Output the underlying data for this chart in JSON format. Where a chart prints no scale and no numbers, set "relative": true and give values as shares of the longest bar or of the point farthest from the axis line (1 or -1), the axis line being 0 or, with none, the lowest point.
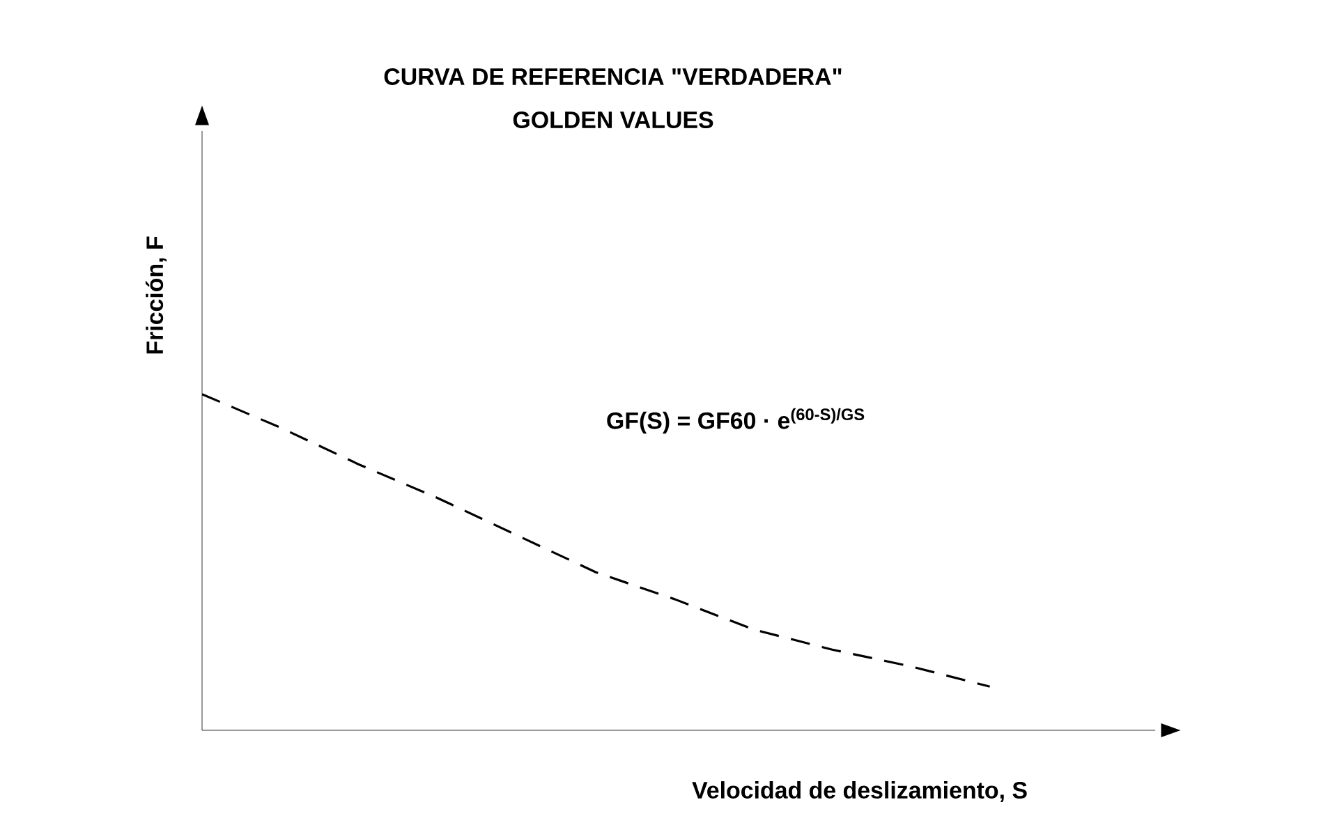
{
  "chart_data": {
    "type": "line",
    "title": "CURVA DE REFERENCIA \"VERDADERA\"",
    "subtitle": "GOLDEN VALUES",
    "xlabel": "Velocidad de deslizamiento, S",
    "ylabel": "Fricción, F",
    "annotations": [
      "GF(S) = GF60 · e$^{(60-S)/GS}$"
    ],
    "categories": [
      null,
      null,
      null,
      null,
      null,
      null,
      null,
      null,
      null,
      null,
      null,
      null,
      null
    ],
    "series": [
      {
        "color": "#000000",
        "values": [
          1,
          0.9,
          0.79,
          0.69,
          0.58,
          0.47,
          0.39,
          0.3,
          0.24,
          0.19,
          0.13,
          null,
          null
        ]
      }
    ],
    "relative": true,
    "line_style": "dashed",
    "marker": "none"
  }
}
